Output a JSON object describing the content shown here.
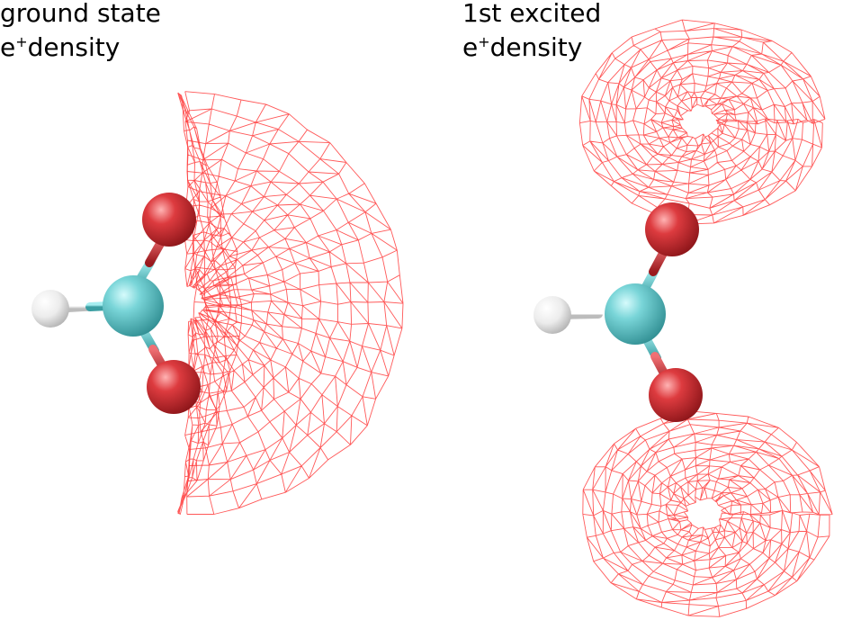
{
  "panels": [
    {
      "id": "ground",
      "title_line1": "ground state",
      "title_line2_prefix": "e",
      "title_line2_sup": "+",
      "title_line2_suffix": "density"
    },
    {
      "id": "excited",
      "title_line1": "1st excited",
      "title_line2_prefix": "e",
      "title_line2_sup": "+",
      "title_line2_suffix": "density"
    }
  ],
  "colors": {
    "mesh": "#ff3b3b",
    "carbon": "#5fc9cc",
    "oxygen": "#d8282e",
    "hydrogen": "#f2f2f2",
    "background": "#ffffff"
  },
  "atoms": [
    "H",
    "C",
    "O",
    "O"
  ]
}
